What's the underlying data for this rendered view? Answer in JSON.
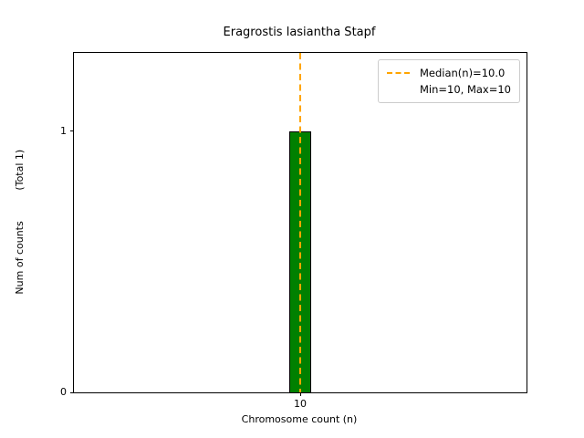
{
  "chart_data": {
    "type": "bar",
    "title": "Eragrostis lasiantha Stapf",
    "xlabel": "Chromosome count (n)",
    "ylabel": "Num of counts",
    "ylabel_secondary": "(Total 1)",
    "x": [
      10
    ],
    "categories": [
      10
    ],
    "values": [
      1
    ],
    "bar_color": "#008000",
    "bar_edge_color": "#000000",
    "bar_width": 0.12,
    "xlim": [
      8.75,
      11.25
    ],
    "ylim": [
      0,
      1.3
    ],
    "xticks": [
      10
    ],
    "yticks": [
      0,
      1
    ],
    "grid": false,
    "median_line": {
      "x": 10,
      "color": "#FFA500",
      "style": "dashed",
      "label": "Median(n)=10.0"
    },
    "stats": {
      "median": 10.0,
      "min": 10,
      "max": 10,
      "total": 1
    },
    "legend": {
      "position": "upper right",
      "entries": [
        {
          "label": "Median(n)=10.0",
          "line_color": "#FFA500",
          "line_style": "dashed"
        },
        {
          "label": "Min=10, Max=10",
          "line_color": null,
          "line_style": null
        }
      ]
    }
  }
}
